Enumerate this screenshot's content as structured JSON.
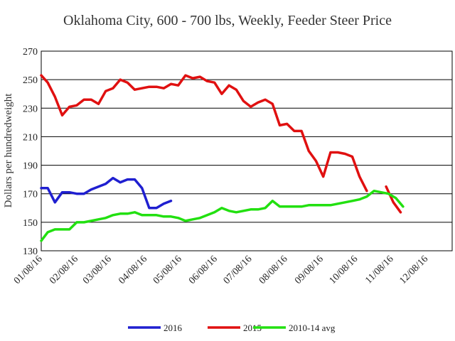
{
  "chart_data": {
    "type": "line",
    "title": "Oklahoma City, 600 - 700 lbs, Weekly, Feeder Steer Price",
    "xlabel": "",
    "ylabel": "Dollars per hundredweight",
    "ylim": [
      130,
      270
    ],
    "yticks": [
      130,
      150,
      170,
      190,
      210,
      230,
      250,
      270
    ],
    "x_range_weeks": [
      0,
      51
    ],
    "xticks": [
      {
        "label": "01/08/16",
        "week": 0
      },
      {
        "label": "02/08/16",
        "week": 4.43
      },
      {
        "label": "03/08/16",
        "week": 8.57
      },
      {
        "label": "04/08/16",
        "week": 13
      },
      {
        "label": "05/08/16",
        "week": 17.29
      },
      {
        "label": "06/08/16",
        "week": 21.71
      },
      {
        "label": "07/08/16",
        "week": 26
      },
      {
        "label": "08/08/16",
        "week": 30.43
      },
      {
        "label": "09/08/16",
        "week": 34.86
      },
      {
        "label": "10/08/16",
        "week": 39.14
      },
      {
        "label": "11/08/16",
        "week": 43.57
      },
      {
        "label": "12/08/16",
        "week": 47.86
      }
    ],
    "grid": "horizontal",
    "legend_position": "bottom",
    "series": [
      {
        "name": "2016",
        "color": "#1f1fd0",
        "points": [
          [
            0,
            174
          ],
          [
            0.8,
            174
          ],
          [
            1.7,
            164
          ],
          [
            2.6,
            171
          ],
          [
            3.5,
            171
          ],
          [
            4.4,
            170
          ],
          [
            5.3,
            170
          ],
          [
            6.2,
            173
          ],
          [
            7.1,
            175
          ],
          [
            8,
            177
          ],
          [
            8.9,
            181
          ],
          [
            9.8,
            178
          ],
          [
            10.7,
            180
          ],
          [
            11.6,
            180
          ],
          [
            12.5,
            174
          ],
          [
            13.4,
            160
          ],
          [
            14.3,
            160
          ],
          [
            15.2,
            163
          ],
          [
            16.1,
            165
          ]
        ]
      },
      {
        "name": "2015",
        "color": "#e01010",
        "points": [
          [
            [
              0,
              253
            ],
            [
              0.8,
              248
            ],
            [
              1.7,
              238
            ],
            [
              2.6,
              225
            ],
            [
              3.5,
              231
            ],
            [
              4.4,
              232
            ],
            [
              5.3,
              236
            ],
            [
              6.2,
              236
            ],
            [
              7.1,
              233
            ],
            [
              8,
              242
            ],
            [
              8.9,
              244
            ],
            [
              9.8,
              250
            ],
            [
              10.7,
              248
            ],
            [
              11.6,
              243
            ],
            [
              12.5,
              244
            ],
            [
              13.4,
              245
            ],
            [
              14.3,
              245
            ],
            [
              15.2,
              244
            ],
            [
              16.1,
              247
            ],
            [
              17,
              246
            ],
            [
              17.9,
              253
            ],
            [
              18.8,
              251
            ],
            [
              19.7,
              252
            ],
            [
              20.6,
              249
            ],
            [
              21.5,
              248
            ],
            [
              22.4,
              240
            ],
            [
              23.3,
              246
            ],
            [
              24.2,
              243
            ],
            [
              25.1,
              235
            ],
            [
              26,
              231
            ],
            [
              26.9,
              234
            ],
            [
              27.8,
              236
            ],
            [
              28.7,
              233
            ],
            [
              29.6,
              218
            ],
            [
              30.5,
              219
            ],
            [
              31.4,
              214
            ],
            [
              32.3,
              214
            ],
            [
              33.2,
              200
            ],
            [
              34.1,
              193
            ],
            [
              35,
              182
            ],
            [
              35.9,
              199
            ],
            [
              36.8,
              199
            ],
            [
              37.7,
              198
            ],
            [
              38.6,
              196
            ],
            [
              39.5,
              182
            ],
            [
              40.4,
              172
            ]
          ],
          [
            [
              42.8,
              175
            ],
            [
              43.7,
              164
            ],
            [
              44.6,
              157
            ]
          ]
        ]
      },
      {
        "name": "2010-14 avg",
        "color": "#22e010",
        "points": [
          [
            0,
            137
          ],
          [
            0.8,
            143
          ],
          [
            1.7,
            145
          ],
          [
            2.6,
            145
          ],
          [
            3.5,
            145
          ],
          [
            4.4,
            150
          ],
          [
            5.3,
            150
          ],
          [
            6.2,
            151
          ],
          [
            7.1,
            152
          ],
          [
            8,
            153
          ],
          [
            8.9,
            155
          ],
          [
            9.8,
            156
          ],
          [
            10.7,
            156
          ],
          [
            11.6,
            157
          ],
          [
            12.5,
            155
          ],
          [
            13.4,
            155
          ],
          [
            14.3,
            155
          ],
          [
            15.2,
            154
          ],
          [
            16.1,
            154
          ],
          [
            17,
            153
          ],
          [
            17.9,
            151
          ],
          [
            18.8,
            152
          ],
          [
            19.7,
            153
          ],
          [
            20.6,
            155
          ],
          [
            21.5,
            157
          ],
          [
            22.4,
            160
          ],
          [
            23.3,
            158
          ],
          [
            24.2,
            157
          ],
          [
            25.1,
            158
          ],
          [
            26,
            159
          ],
          [
            26.9,
            159
          ],
          [
            27.8,
            160
          ],
          [
            28.7,
            165
          ],
          [
            29.6,
            161
          ],
          [
            30.5,
            161
          ],
          [
            31.4,
            161
          ],
          [
            32.3,
            161
          ],
          [
            33.2,
            162
          ],
          [
            34.1,
            162
          ],
          [
            35,
            162
          ],
          [
            35.9,
            162
          ],
          [
            36.8,
            163
          ],
          [
            37.7,
            164
          ],
          [
            38.6,
            165
          ],
          [
            39.5,
            166
          ],
          [
            40.4,
            168
          ],
          [
            41.3,
            172
          ],
          [
            42.2,
            171
          ],
          [
            43.1,
            170
          ],
          [
            44,
            167
          ],
          [
            44.9,
            161
          ]
        ]
      }
    ]
  }
}
